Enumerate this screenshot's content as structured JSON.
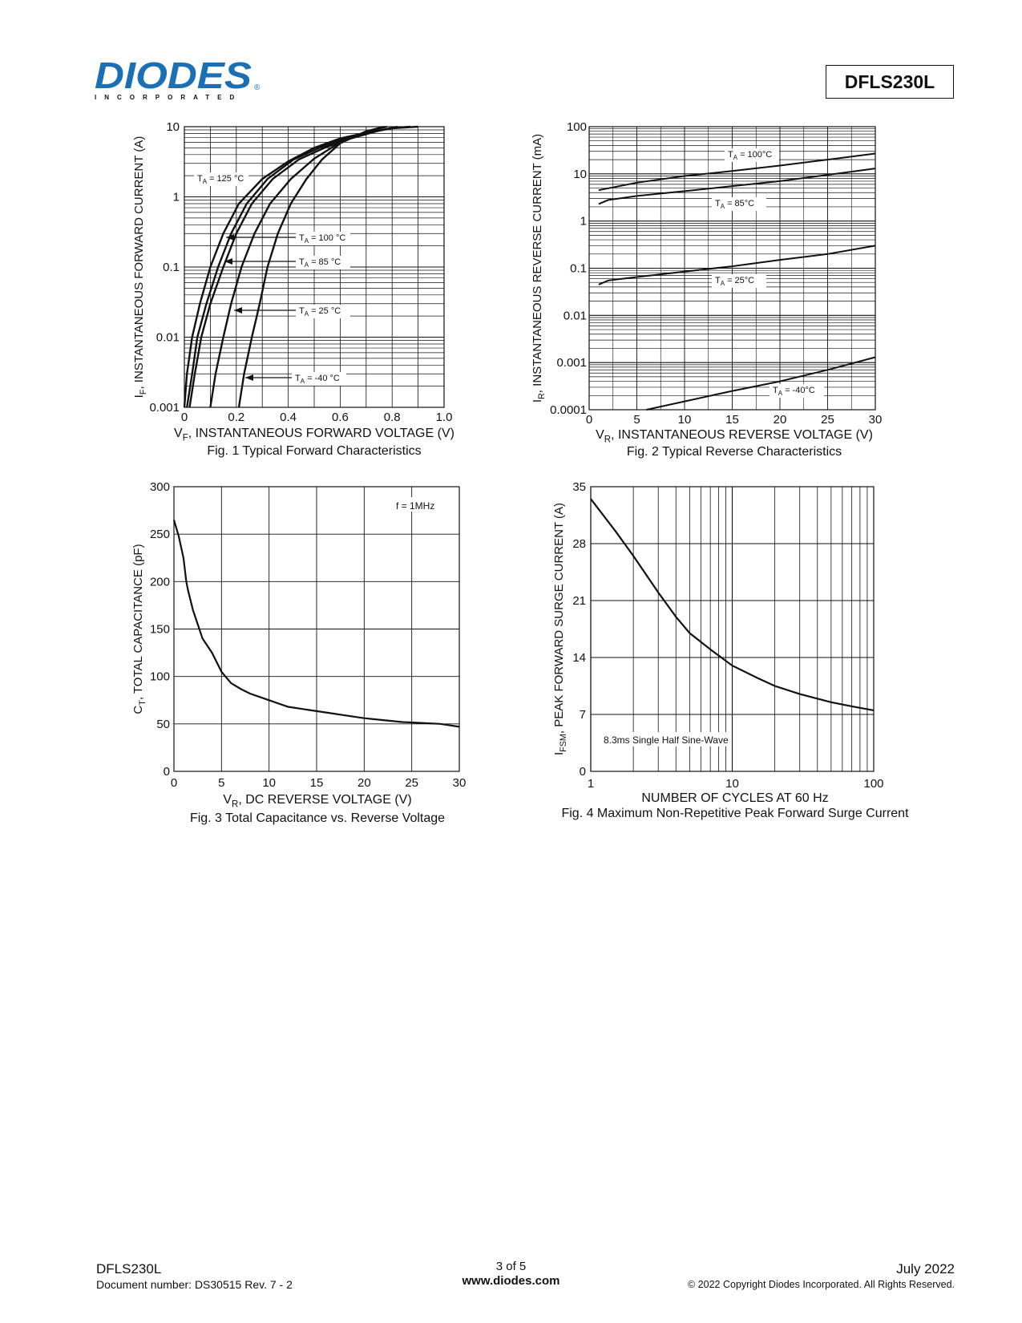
{
  "header": {
    "logo_text": "DIODES",
    "logo_sub": "INCORPORATED",
    "logo_reg": "®",
    "part_number": "DFLS230L",
    "brand_color": "#1b6fb5"
  },
  "footer": {
    "part": "DFLS230L",
    "doc_number": "Document number: DS30515 Rev. 7 - 2",
    "page": "3 of 5",
    "website": "www.diodes.com",
    "date": "July 2022",
    "copyright": "© 2022 Copyright Diodes Incorporated. All Rights Reserved."
  },
  "chart_data": [
    {
      "id": "fig1",
      "type": "line",
      "title": "Fig. 1 Typical Forward Characteristics",
      "xlabel_main": "V",
      "xlabel_sub": "F",
      "xlabel_rest": ", INSTANTANEOUS FORWARD VOLTAGE (V)",
      "ylabel_main": "I",
      "ylabel_sub": "F",
      "ylabel_rest": ", INSTANTANEOUS FORWARD CURRENT (A)",
      "xlim": [
        0,
        1.0
      ],
      "ylim": [
        0.001,
        10
      ],
      "yscale": "log",
      "xticks": [
        "0",
        "0.2",
        "0.4",
        "0.6",
        "0.8",
        "1.0"
      ],
      "yticks": [
        "0.001",
        "0.01",
        "0.1",
        "1",
        "10"
      ],
      "grid": true,
      "series": [
        {
          "name": "125 °C",
          "points": [
            [
              0.0,
              0.001
            ],
            [
              0.01,
              0.003
            ],
            [
              0.03,
              0.01
            ],
            [
              0.06,
              0.03
            ],
            [
              0.1,
              0.1
            ],
            [
              0.15,
              0.3
            ],
            [
              0.21,
              0.8
            ],
            [
              0.3,
              1.8
            ],
            [
              0.4,
              3.2
            ],
            [
              0.5,
              5.0
            ],
            [
              0.6,
              6.8
            ],
            [
              0.7,
              8.2
            ],
            [
              0.8,
              9.5
            ],
            [
              0.9,
              10
            ]
          ]
        },
        {
          "name": "100 °C",
          "points": [
            [
              0.01,
              0.001
            ],
            [
              0.03,
              0.003
            ],
            [
              0.05,
              0.01
            ],
            [
              0.085,
              0.03
            ],
            [
              0.13,
              0.1
            ],
            [
              0.18,
              0.3
            ],
            [
              0.24,
              0.8
            ],
            [
              0.32,
              1.8
            ],
            [
              0.42,
              3.4
            ],
            [
              0.52,
              5.0
            ],
            [
              0.62,
              6.8
            ],
            [
              0.72,
              8.4
            ],
            [
              0.8,
              9.5
            ],
            [
              0.87,
              10
            ]
          ]
        },
        {
          "name": "85 °C",
          "points": [
            [
              0.02,
              0.001
            ],
            [
              0.04,
              0.003
            ],
            [
              0.065,
              0.01
            ],
            [
              0.1,
              0.03
            ],
            [
              0.15,
              0.1
            ],
            [
              0.2,
              0.3
            ],
            [
              0.26,
              0.8
            ],
            [
              0.34,
              1.8
            ],
            [
              0.44,
              3.4
            ],
            [
              0.54,
              5.0
            ],
            [
              0.64,
              6.8
            ],
            [
              0.74,
              8.6
            ],
            [
              0.82,
              10
            ]
          ]
        },
        {
          "name": "25 °C",
          "points": [
            [
              0.1,
              0.001
            ],
            [
              0.12,
              0.003
            ],
            [
              0.15,
              0.01
            ],
            [
              0.18,
              0.03
            ],
            [
              0.22,
              0.1
            ],
            [
              0.27,
              0.3
            ],
            [
              0.33,
              0.8
            ],
            [
              0.41,
              1.8
            ],
            [
              0.5,
              3.5
            ],
            [
              0.6,
              6.0
            ],
            [
              0.7,
              8.5
            ],
            [
              0.78,
              10
            ]
          ]
        },
        {
          "name": "-40 °C",
          "points": [
            [
              0.21,
              0.001
            ],
            [
              0.23,
              0.003
            ],
            [
              0.26,
              0.01
            ],
            [
              0.29,
              0.03
            ],
            [
              0.32,
              0.1
            ],
            [
              0.36,
              0.3
            ],
            [
              0.41,
              0.8
            ],
            [
              0.47,
              1.8
            ],
            [
              0.53,
              3.4
            ],
            [
              0.6,
              5.8
            ],
            [
              0.7,
              8.6
            ],
            [
              0.77,
              10
            ]
          ]
        }
      ],
      "labels": [
        {
          "text": "T",
          "sub": "A",
          "rest": " = 125 °C"
        },
        {
          "text": "T",
          "sub": "A",
          "rest": " = 100 °C"
        },
        {
          "text": "T",
          "sub": "A",
          "rest": " = 85 °C"
        },
        {
          "text": "T",
          "sub": "A",
          "rest": " = 25 °C"
        },
        {
          "text": "T",
          "sub": "A",
          "rest": " = -40 °C"
        }
      ]
    },
    {
      "id": "fig2",
      "type": "line",
      "title": "Fig. 2 Typical Reverse Characteristics",
      "xlabel_main": "V",
      "xlabel_sub": "R",
      "xlabel_rest": ", INSTANTANEOUS REVERSE VOLTAGE (V)",
      "ylabel_main": "I",
      "ylabel_sub": "R",
      "ylabel_rest": ", INSTANTANEOUS REVERSE CURRENT (mA)",
      "xlim": [
        0,
        30
      ],
      "ylim": [
        0.0001,
        100
      ],
      "yscale": "log",
      "xticks": [
        "0",
        "5",
        "10",
        "15",
        "20",
        "25",
        "30"
      ],
      "yticks": [
        "0.0001",
        "0.001",
        "0.01",
        "0.1",
        "1",
        "10",
        "100"
      ],
      "grid": true,
      "series": [
        {
          "name": "100°C",
          "points": [
            [
              1,
              4.5
            ],
            [
              5,
              6.5
            ],
            [
              10,
              9
            ],
            [
              15,
              11.5
            ],
            [
              20,
              15
            ],
            [
              25,
              20
            ],
            [
              30,
              27
            ]
          ]
        },
        {
          "name": "85°C",
          "points": [
            [
              1,
              2.3
            ],
            [
              2,
              2.8
            ],
            [
              5,
              3.4
            ],
            [
              10,
              4.3
            ],
            [
              15,
              5.5
            ],
            [
              20,
              7
            ],
            [
              25,
              9.5
            ],
            [
              30,
              13
            ]
          ]
        },
        {
          "name": "25°C",
          "points": [
            [
              1,
              0.045
            ],
            [
              2,
              0.055
            ],
            [
              5,
              0.065
            ],
            [
              10,
              0.085
            ],
            [
              15,
              0.11
            ],
            [
              20,
              0.15
            ],
            [
              25,
              0.2
            ],
            [
              30,
              0.3
            ]
          ]
        },
        {
          "name": "-40°C",
          "points": [
            [
              6,
              0.0001
            ],
            [
              10,
              0.00015
            ],
            [
              15,
              0.00025
            ],
            [
              20,
              0.0004
            ],
            [
              25,
              0.0007
            ],
            [
              30,
              0.0013
            ]
          ]
        }
      ],
      "labels": [
        {
          "text": "T",
          "sub": "A",
          "rest": " = 100°C"
        },
        {
          "text": "T",
          "sub": "A",
          "rest": " = 85°C"
        },
        {
          "text": "T",
          "sub": "A",
          "rest": " = 25°C"
        },
        {
          "text": "T",
          "sub": "A",
          "rest": " = -40°C"
        }
      ]
    },
    {
      "id": "fig3",
      "type": "line",
      "title": "Fig. 3 Total Capacitance vs. Reverse Voltage",
      "xlabel_main": "V",
      "xlabel_sub": "R",
      "xlabel_rest": ", DC REVERSE VOLTAGE (V)",
      "ylabel_main": "C",
      "ylabel_sub": "T",
      "ylabel_rest": ", TOTAL CAPACITANCE (pF)",
      "xlim": [
        0,
        30
      ],
      "ylim": [
        0,
        300
      ],
      "xticks": [
        "0",
        "5",
        "10",
        "15",
        "20",
        "25",
        "30"
      ],
      "yticks": [
        "0",
        "50",
        "100",
        "150",
        "200",
        "250",
        "300"
      ],
      "grid": true,
      "annotation": "f = 1MHz",
      "series": [
        {
          "name": "",
          "points": [
            [
              0,
              265
            ],
            [
              0.5,
              248
            ],
            [
              1,
              225
            ],
            [
              1.3,
              200
            ],
            [
              1.5,
              190
            ],
            [
              2,
              170
            ],
            [
              2.5,
              155
            ],
            [
              3,
              140
            ],
            [
              4,
              125
            ],
            [
              5,
              105
            ],
            [
              6,
              93
            ],
            [
              7,
              87
            ],
            [
              8,
              82
            ],
            [
              10,
              75
            ],
            [
              12,
              68
            ],
            [
              14,
              65
            ],
            [
              16,
              62
            ],
            [
              18,
              59
            ],
            [
              20,
              56
            ],
            [
              22,
              54
            ],
            [
              24,
              52
            ],
            [
              26,
              51
            ],
            [
              28,
              50
            ],
            [
              30,
              47
            ]
          ]
        }
      ]
    },
    {
      "id": "fig4",
      "type": "line",
      "title": "Fig. 4 Maximum Non-Repetitive Peak Forward Surge Current",
      "xlabel": "NUMBER OF CYCLES AT 60 Hz",
      "ylabel_main": "I",
      "ylabel_sub": "FSM",
      "ylabel_rest": ", PEAK FORWARD SURGE CURRENT (A)",
      "xlim": [
        1,
        100
      ],
      "xscale": "log",
      "ylim": [
        0,
        35
      ],
      "xticks": [
        "1",
        "10",
        "100"
      ],
      "yticks": [
        "0",
        "7",
        "14",
        "21",
        "28",
        "35"
      ],
      "grid": true,
      "annotation": "8.3ms Single Half Sine-Wave",
      "series": [
        {
          "name": "",
          "points": [
            [
              1,
              33.5
            ],
            [
              1.5,
              29.5
            ],
            [
              2,
              26.5
            ],
            [
              3,
              22
            ],
            [
              4,
              19
            ],
            [
              5,
              17
            ],
            [
              7,
              15
            ],
            [
              10,
              13
            ],
            [
              15,
              11.5
            ],
            [
              20,
              10.5
            ],
            [
              30,
              9.5
            ],
            [
              50,
              8.5
            ],
            [
              70,
              8
            ],
            [
              100,
              7.5
            ]
          ]
        }
      ]
    }
  ]
}
